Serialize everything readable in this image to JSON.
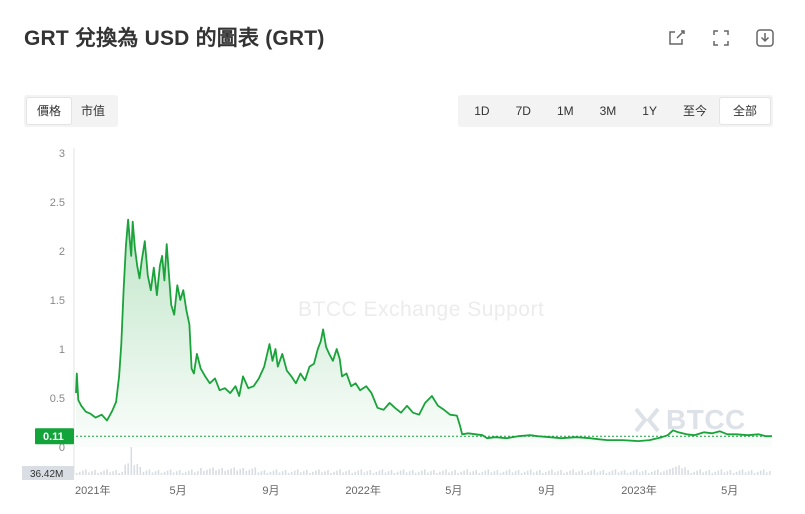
{
  "title": "GRT 兌換為 USD 的圖表 (GRT)",
  "icons": {
    "share": "share-icon",
    "fullscreen": "fullscreen-icon",
    "download": "download-icon"
  },
  "metric_tabs": [
    {
      "label": "價格",
      "active": true
    },
    {
      "label": "市值",
      "active": false
    }
  ],
  "range_tabs": [
    {
      "label": "1D",
      "active": false
    },
    {
      "label": "7D",
      "active": false
    },
    {
      "label": "1M",
      "active": false
    },
    {
      "label": "3M",
      "active": false
    },
    {
      "label": "1Y",
      "active": false
    },
    {
      "label": "至今",
      "active": false
    },
    {
      "label": "全部",
      "active": true
    }
  ],
  "watermark": "BTCC Exchange Support",
  "logo_text": "BTCC",
  "colors": {
    "line": "#1aa33a",
    "current_badge": "#12a43a",
    "volume": "#d8dce3",
    "grid_text": "#888888"
  },
  "chart_data": {
    "type": "area",
    "title": "",
    "xlabel": "",
    "ylabel": "",
    "ylim": [
      0,
      3
    ],
    "y_ticks": [
      0,
      0.5,
      1,
      1.5,
      2,
      2.5,
      3
    ],
    "y_tick_labels": [
      "0",
      "0.5",
      "1",
      "1.5",
      "2",
      "2.5",
      "3"
    ],
    "x_tick_labels": [
      "2021年",
      "5月",
      "9月",
      "2022年",
      "5月",
      "9月",
      "2023年",
      "5月"
    ],
    "x_ticks": [
      "2021-01-01",
      "2021-05-01",
      "2021-09-01",
      "2022-01-01",
      "2022-05-01",
      "2022-09-01",
      "2023-01-01",
      "2023-05-01"
    ],
    "x_range": [
      "2020-12-17",
      "2023-06-26"
    ],
    "current_price_label": "0.11",
    "current_price": 0.11,
    "volume_label": "36.42M",
    "series": [
      {
        "values": [
          [
            "2020-12-17",
            0.55
          ],
          [
            "2020-12-18",
            0.75
          ],
          [
            "2020-12-20",
            0.48
          ],
          [
            "2020-12-24",
            0.42
          ],
          [
            "2020-12-30",
            0.36
          ],
          [
            "2021-01-05",
            0.34
          ],
          [
            "2021-01-12",
            0.3
          ],
          [
            "2021-01-20",
            0.33
          ],
          [
            "2021-01-27",
            0.27
          ],
          [
            "2021-02-03",
            0.37
          ],
          [
            "2021-02-08",
            0.46
          ],
          [
            "2021-02-12",
            0.72
          ],
          [
            "2021-02-15",
            1.05
          ],
          [
            "2021-02-18",
            1.6
          ],
          [
            "2021-02-21",
            2.05
          ],
          [
            "2021-02-24",
            2.32
          ],
          [
            "2021-02-26",
            2.12
          ],
          [
            "2021-02-28",
            1.95
          ],
          [
            "2021-03-02",
            2.3
          ],
          [
            "2021-03-05",
            2.03
          ],
          [
            "2021-03-08",
            1.85
          ],
          [
            "2021-03-11",
            1.72
          ],
          [
            "2021-03-14",
            1.9
          ],
          [
            "2021-03-18",
            2.1
          ],
          [
            "2021-03-22",
            1.75
          ],
          [
            "2021-03-26",
            1.6
          ],
          [
            "2021-03-30",
            1.83
          ],
          [
            "2021-04-03",
            1.55
          ],
          [
            "2021-04-07",
            1.85
          ],
          [
            "2021-04-10",
            1.95
          ],
          [
            "2021-04-13",
            1.7
          ],
          [
            "2021-04-16",
            2.07
          ],
          [
            "2021-04-19",
            1.75
          ],
          [
            "2021-04-22",
            1.45
          ],
          [
            "2021-04-26",
            1.35
          ],
          [
            "2021-04-30",
            1.65
          ],
          [
            "2021-05-04",
            1.5
          ],
          [
            "2021-05-08",
            1.6
          ],
          [
            "2021-05-12",
            1.4
          ],
          [
            "2021-05-16",
            1.25
          ],
          [
            "2021-05-19",
            0.8
          ],
          [
            "2021-05-22",
            0.75
          ],
          [
            "2021-05-26",
            0.95
          ],
          [
            "2021-05-31",
            0.8
          ],
          [
            "2021-06-06",
            0.72
          ],
          [
            "2021-06-12",
            0.65
          ],
          [
            "2021-06-19",
            0.7
          ],
          [
            "2021-06-25",
            0.58
          ],
          [
            "2021-07-02",
            0.6
          ],
          [
            "2021-07-09",
            0.55
          ],
          [
            "2021-07-16",
            0.62
          ],
          [
            "2021-07-21",
            0.52
          ],
          [
            "2021-07-26",
            0.72
          ],
          [
            "2021-08-02",
            0.6
          ],
          [
            "2021-08-09",
            0.62
          ],
          [
            "2021-08-16",
            0.7
          ],
          [
            "2021-08-23",
            0.82
          ],
          [
            "2021-08-30",
            1.05
          ],
          [
            "2021-09-03",
            0.88
          ],
          [
            "2021-09-07",
            1.0
          ],
          [
            "2021-09-10",
            0.82
          ],
          [
            "2021-09-16",
            0.95
          ],
          [
            "2021-09-22",
            0.78
          ],
          [
            "2021-09-28",
            0.72
          ],
          [
            "2021-10-04",
            0.65
          ],
          [
            "2021-10-10",
            0.75
          ],
          [
            "2021-10-16",
            0.68
          ],
          [
            "2021-10-22",
            0.82
          ],
          [
            "2021-10-28",
            0.85
          ],
          [
            "2021-11-02",
            1.0
          ],
          [
            "2021-11-06",
            1.08
          ],
          [
            "2021-11-09",
            1.2
          ],
          [
            "2021-11-13",
            1.02
          ],
          [
            "2021-11-17",
            0.95
          ],
          [
            "2021-11-22",
            0.88
          ],
          [
            "2021-11-27",
            1.0
          ],
          [
            "2021-12-01",
            0.9
          ],
          [
            "2021-12-04",
            0.72
          ],
          [
            "2021-12-10",
            0.75
          ],
          [
            "2021-12-16",
            0.62
          ],
          [
            "2021-12-22",
            0.65
          ],
          [
            "2021-12-28",
            0.58
          ],
          [
            "2022-01-05",
            0.62
          ],
          [
            "2022-01-12",
            0.55
          ],
          [
            "2022-01-20",
            0.4
          ],
          [
            "2022-01-28",
            0.38
          ],
          [
            "2022-02-05",
            0.45
          ],
          [
            "2022-02-12",
            0.4
          ],
          [
            "2022-02-20",
            0.35
          ],
          [
            "2022-02-28",
            0.42
          ],
          [
            "2022-03-08",
            0.35
          ],
          [
            "2022-03-16",
            0.33
          ],
          [
            "2022-03-24",
            0.45
          ],
          [
            "2022-04-02",
            0.52
          ],
          [
            "2022-04-10",
            0.42
          ],
          [
            "2022-04-18",
            0.38
          ],
          [
            "2022-04-26",
            0.33
          ],
          [
            "2022-05-05",
            0.32
          ],
          [
            "2022-05-09",
            0.22
          ],
          [
            "2022-05-12",
            0.13
          ],
          [
            "2022-05-20",
            0.14
          ],
          [
            "2022-05-30",
            0.13
          ],
          [
            "2022-06-08",
            0.12
          ],
          [
            "2022-06-14",
            0.09
          ],
          [
            "2022-06-25",
            0.1
          ],
          [
            "2022-07-10",
            0.09
          ],
          [
            "2022-07-25",
            0.11
          ],
          [
            "2022-08-10",
            0.12
          ],
          [
            "2022-08-20",
            0.11
          ],
          [
            "2022-09-05",
            0.1
          ],
          [
            "2022-09-20",
            0.09
          ],
          [
            "2022-10-10",
            0.1
          ],
          [
            "2022-10-28",
            0.09
          ],
          [
            "2022-11-08",
            0.08
          ],
          [
            "2022-11-20",
            0.07
          ],
          [
            "2022-12-10",
            0.07
          ],
          [
            "2022-12-31",
            0.06
          ],
          [
            "2023-01-15",
            0.07
          ],
          [
            "2023-01-31",
            0.1
          ],
          [
            "2023-02-08",
            0.12
          ],
          [
            "2023-02-15",
            0.17
          ],
          [
            "2023-02-22",
            0.15
          ],
          [
            "2023-03-05",
            0.13
          ],
          [
            "2023-03-15",
            0.12
          ],
          [
            "2023-03-28",
            0.15
          ],
          [
            "2023-04-08",
            0.14
          ],
          [
            "2023-04-18",
            0.16
          ],
          [
            "2023-04-28",
            0.13
          ],
          [
            "2023-05-10",
            0.13
          ],
          [
            "2023-05-25",
            0.12
          ],
          [
            "2023-06-08",
            0.13
          ],
          [
            "2023-06-18",
            0.11
          ],
          [
            "2023-06-26",
            0.11
          ]
        ]
      }
    ]
  }
}
